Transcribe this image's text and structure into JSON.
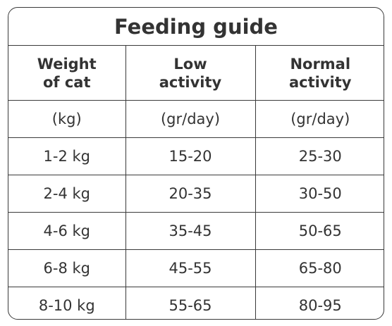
{
  "title": "Feeding guide",
  "headers": [
    {
      "line1": "Weight",
      "line2": "of cat"
    },
    {
      "line1": "Low",
      "line2": "activity"
    },
    {
      "line1": "Normal",
      "line2": "activity"
    }
  ],
  "units": [
    "(kg)",
    "(gr/day)",
    "(gr/day)"
  ],
  "rows": [
    [
      "1-2 kg",
      "15-20",
      "25-30"
    ],
    [
      "2-4 kg",
      "20-35",
      "30-50"
    ],
    [
      "4-6 kg",
      "35-45",
      "50-65"
    ],
    [
      "6-8 kg",
      "45-55",
      "65-80"
    ],
    [
      "8-10 kg",
      "55-65",
      "80-95"
    ]
  ]
}
